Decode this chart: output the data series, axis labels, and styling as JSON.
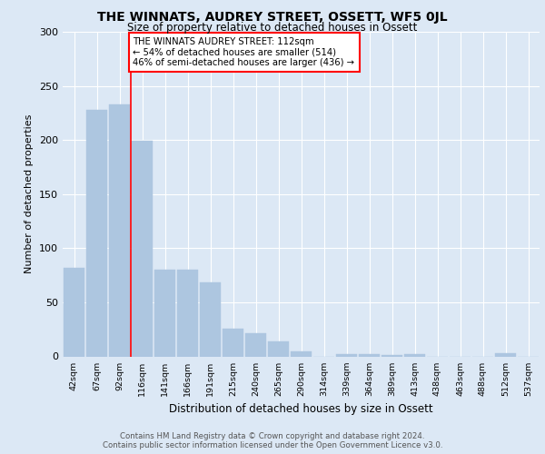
{
  "title": "THE WINNATS, AUDREY STREET, OSSETT, WF5 0JL",
  "subtitle": "Size of property relative to detached houses in Ossett",
  "xlabel": "Distribution of detached houses by size in Ossett",
  "ylabel": "Number of detached properties",
  "categories": [
    "42sqm",
    "67sqm",
    "92sqm",
    "116sqm",
    "141sqm",
    "166sqm",
    "191sqm",
    "215sqm",
    "240sqm",
    "265sqm",
    "290sqm",
    "314sqm",
    "339sqm",
    "364sqm",
    "389sqm",
    "413sqm",
    "438sqm",
    "463sqm",
    "488sqm",
    "512sqm",
    "537sqm"
  ],
  "values": [
    82,
    228,
    233,
    199,
    80,
    80,
    68,
    26,
    21,
    14,
    5,
    0,
    2,
    2,
    1,
    2,
    0,
    0,
    0,
    3,
    0
  ],
  "bar_color": "#adc6e0",
  "bar_edge_color": "#adc6e0",
  "reference_line_label": "THE WINNATS AUDREY STREET: 112sqm",
  "annotation_line1": "← 54% of detached houses are smaller (514)",
  "annotation_line2": "46% of semi-detached houses are larger (436) →",
  "ylim": [
    0,
    300
  ],
  "yticks": [
    0,
    50,
    100,
    150,
    200,
    250,
    300
  ],
  "background_color": "#dce8f5",
  "footer_line1": "Contains HM Land Registry data © Crown copyright and database right 2024.",
  "footer_line2": "Contains public sector information licensed under the Open Government Licence v3.0."
}
